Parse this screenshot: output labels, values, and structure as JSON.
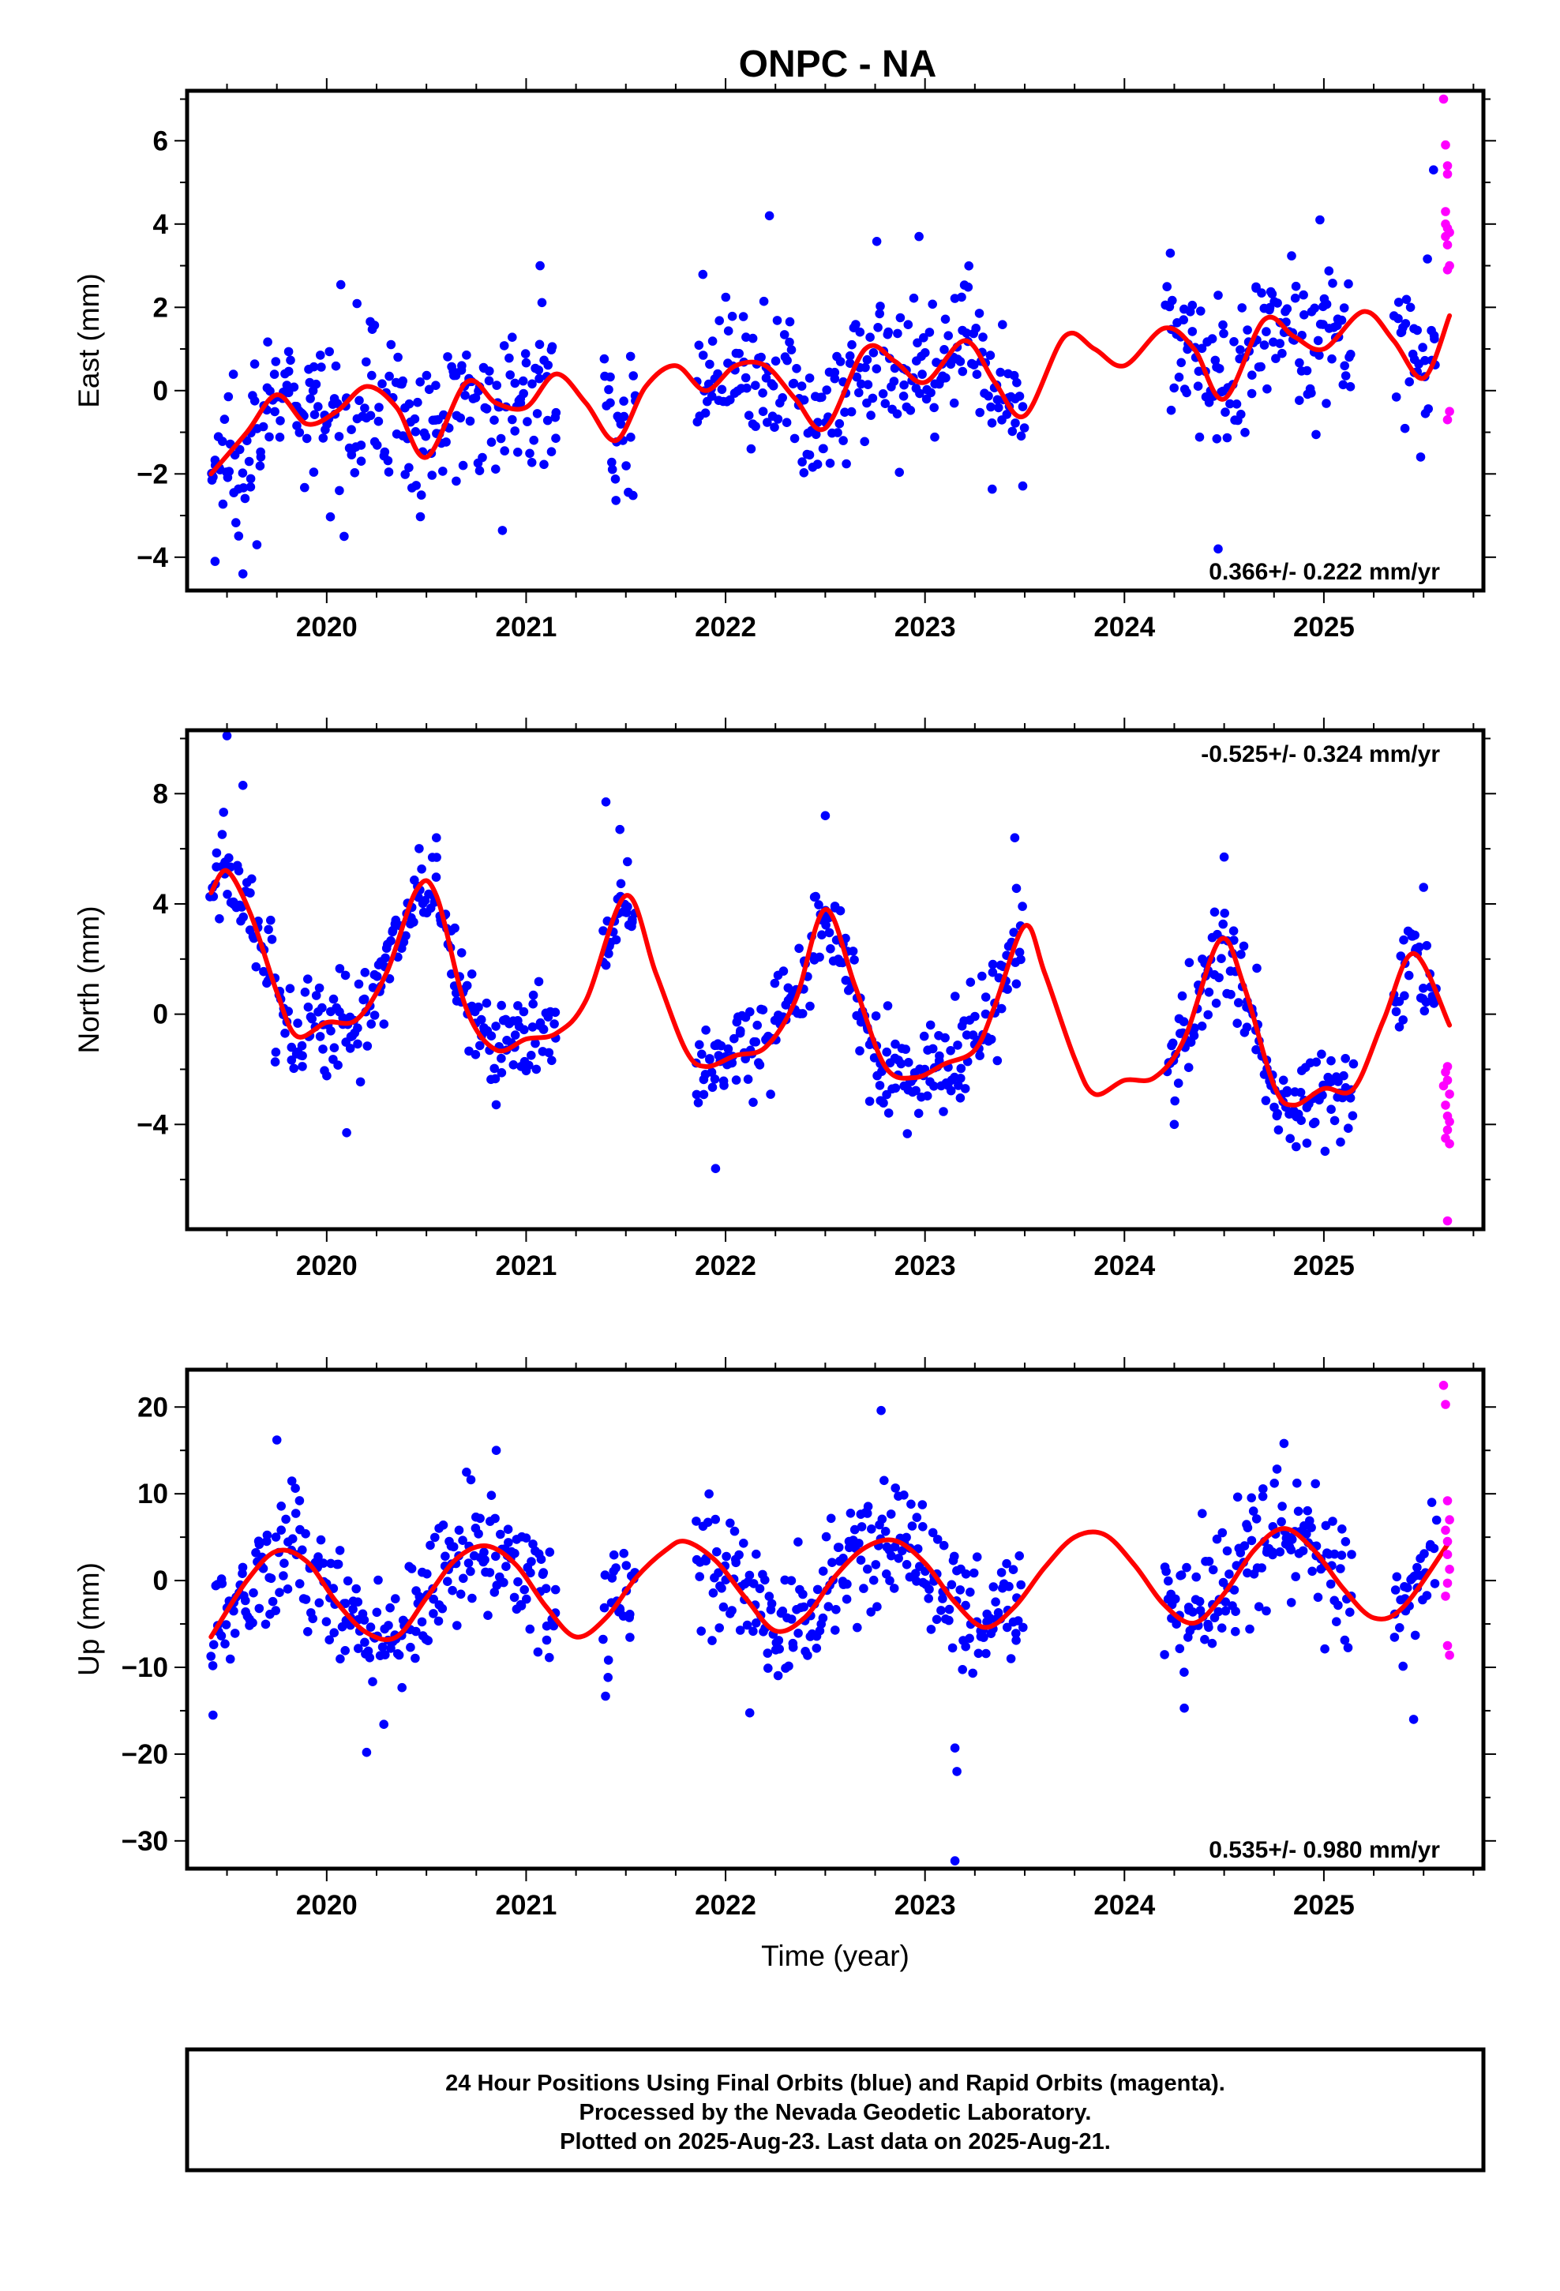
{
  "title": "ONPC - NA",
  "xlabel": "Time (year)",
  "footer": {
    "lines": [
      "24 Hour Positions Using Final Orbits (blue) and Rapid Orbits (magenta).",
      "Processed by the Nevada Geodetic Laboratory.",
      "Plotted on 2025-Aug-23. Last data on 2025-Aug-21."
    ]
  },
  "colors": {
    "final_orbits": "#0000ff",
    "rapid_orbits": "#ff00ff",
    "model_fit": "#ff0000",
    "frame": "#000000"
  },
  "chart_data": [
    {
      "type": "scatter",
      "component": "east",
      "ylabel": "East (mm)",
      "xlim": [
        2019.3,
        2025.8
      ],
      "ylim": [
        -4.8,
        7.2
      ],
      "xticks": [
        2020,
        2021,
        2022,
        2023,
        2024,
        2025
      ],
      "yticks": [
        -4,
        -2,
        0,
        2,
        4,
        6
      ],
      "rate_label": "0.366+/- 0.222 mm/yr",
      "rate_position": "bottom-right",
      "model": {
        "name": "model fit",
        "x": [
          2019.42,
          2019.6,
          2019.75,
          2019.9,
          2020.05,
          2020.2,
          2020.35,
          2020.5,
          2020.7,
          2020.85,
          2021.0,
          2021.15,
          2021.3,
          2021.45,
          2021.6,
          2021.75,
          2021.9,
          2022.05,
          2022.2,
          2022.35,
          2022.5,
          2022.7,
          2022.85,
          2023.0,
          2023.2,
          2023.35,
          2023.5,
          2023.7,
          2023.85,
          2024.0,
          2024.2,
          2024.35,
          2024.5,
          2024.7,
          2024.85,
          2025.0,
          2025.2,
          2025.35,
          2025.5,
          2025.63
        ],
        "y": [
          -2.0,
          -1.0,
          -0.1,
          -0.8,
          -0.5,
          0.1,
          -0.4,
          -1.6,
          0.2,
          -0.3,
          -0.4,
          0.4,
          -0.3,
          -1.2,
          0.1,
          0.6,
          0.0,
          0.6,
          0.6,
          -0.2,
          -0.9,
          1.0,
          0.7,
          0.2,
          1.2,
          0.2,
          -0.6,
          1.3,
          1.0,
          0.6,
          1.5,
          1.0,
          -0.2,
          1.7,
          1.3,
          1.0,
          1.9,
          1.2,
          0.3,
          1.8
        ]
      },
      "gaps": [
        [
          2021.15,
          2021.38
        ],
        [
          2021.55,
          2021.85
        ],
        [
          2023.5,
          2024.2
        ],
        [
          2025.15,
          2025.35
        ]
      ],
      "final_points": {
        "x_start": 2019.42,
        "x_end": 2025.57,
        "count": 900,
        "spread_mm": 0.9,
        "outliers": [
          {
            "x": 2019.44,
            "y": -4.1
          },
          {
            "x": 2019.58,
            "y": -4.4
          },
          {
            "x": 2019.65,
            "y": -3.7
          },
          {
            "x": 2021.07,
            "y": 3.0
          },
          {
            "x": 2022.22,
            "y": 4.2
          },
          {
            "x": 2022.97,
            "y": 3.7
          },
          {
            "x": 2024.23,
            "y": 3.3
          },
          {
            "x": 2024.47,
            "y": -3.8
          },
          {
            "x": 2024.98,
            "y": 4.1
          },
          {
            "x": 2025.55,
            "y": 5.3
          }
        ]
      },
      "rapid_points": {
        "x": [
          2025.6,
          2025.61,
          2025.62,
          2025.62,
          2025.61,
          2025.62,
          2025.61,
          2025.62,
          2025.63,
          2025.62,
          2025.63,
          2025.62,
          2025.61,
          2025.63
        ],
        "y": [
          7.0,
          5.9,
          5.4,
          5.2,
          4.3,
          3.9,
          3.7,
          3.5,
          3.0,
          2.9,
          -0.5,
          -0.7,
          4.0,
          3.8
        ]
      }
    },
    {
      "type": "scatter",
      "component": "north",
      "ylabel": "North (mm)",
      "xlim": [
        2019.3,
        2025.8
      ],
      "ylim": [
        -7.8,
        10.3
      ],
      "xticks": [
        2020,
        2021,
        2022,
        2023,
        2024,
        2025
      ],
      "yticks": [
        -4,
        0,
        4,
        8
      ],
      "rate_label": "-0.525+/- 0.324 mm/yr",
      "rate_position": "top-right",
      "model": {
        "name": "model fit",
        "x": [
          2019.42,
          2019.5,
          2019.62,
          2019.75,
          2019.85,
          2020.0,
          2020.15,
          2020.3,
          2020.45,
          2020.55,
          2020.7,
          2020.85,
          2021.0,
          2021.15,
          2021.3,
          2021.5,
          2021.65,
          2021.8,
          2021.9,
          2022.05,
          2022.2,
          2022.35,
          2022.5,
          2022.65,
          2022.8,
          2022.95,
          2023.1,
          2023.25,
          2023.35,
          2023.5,
          2023.6,
          2023.75,
          2023.85,
          2024.0,
          2024.15,
          2024.3,
          2024.48,
          2024.6,
          2024.75,
          2024.85,
          2025.0,
          2025.15,
          2025.3,
          2025.45,
          2025.63
        ],
        "y": [
          4.4,
          5.2,
          3.6,
          0.8,
          -0.8,
          -0.3,
          -0.2,
          1.5,
          4.5,
          4.3,
          0.2,
          -1.3,
          -0.9,
          -0.7,
          0.5,
          4.3,
          1.5,
          -1.3,
          -1.9,
          -1.5,
          -1.2,
          0.5,
          3.8,
          1.0,
          -1.9,
          -2.3,
          -1.8,
          -1.3,
          0.3,
          3.2,
          1.5,
          -1.6,
          -2.9,
          -2.4,
          -2.3,
          -0.9,
          2.7,
          1.0,
          -2.6,
          -3.3,
          -2.7,
          -2.7,
          -0.2,
          2.2,
          -0.4
        ]
      },
      "gaps": [
        [
          2021.15,
          2021.38
        ],
        [
          2021.55,
          2021.85
        ],
        [
          2023.5,
          2024.2
        ],
        [
          2025.15,
          2025.35
        ]
      ],
      "final_points": {
        "x_start": 2019.42,
        "x_end": 2025.57,
        "count": 900,
        "spread_mm": 0.9,
        "outliers": [
          {
            "x": 2019.5,
            "y": 10.1
          },
          {
            "x": 2019.58,
            "y": 8.3
          },
          {
            "x": 2020.1,
            "y": -4.3
          },
          {
            "x": 2020.55,
            "y": 6.4
          },
          {
            "x": 2021.4,
            "y": 7.7
          },
          {
            "x": 2021.47,
            "y": 6.7
          },
          {
            "x": 2021.95,
            "y": -5.6
          },
          {
            "x": 2022.5,
            "y": 7.2
          },
          {
            "x": 2023.45,
            "y": 6.4
          },
          {
            "x": 2024.25,
            "y": -4.0
          },
          {
            "x": 2024.5,
            "y": 5.7
          },
          {
            "x": 2025.5,
            "y": 4.6
          }
        ]
      },
      "rapid_points": {
        "x": [
          2025.6,
          2025.61,
          2025.62,
          2025.63,
          2025.61,
          2025.62,
          2025.63,
          2025.62,
          2025.61,
          2025.63,
          2025.62,
          2025.62
        ],
        "y": [
          -2.6,
          -2.1,
          -1.9,
          -2.9,
          -3.3,
          -3.7,
          -3.9,
          -4.2,
          -4.5,
          -4.7,
          -7.5,
          -2.4
        ]
      }
    },
    {
      "type": "scatter",
      "component": "up",
      "ylabel": "Up (mm)",
      "xlim": [
        2019.3,
        2025.8
      ],
      "ylim": [
        -33.2,
        24.3
      ],
      "xticks": [
        2020,
        2021,
        2022,
        2023,
        2024,
        2025
      ],
      "yticks": [
        -30,
        -20,
        -10,
        0,
        10,
        20
      ],
      "rate_label": "0.535+/- 0.980 mm/yr",
      "rate_position": "bottom-right",
      "model": {
        "name": "model fit",
        "x": [
          2019.42,
          2019.6,
          2019.75,
          2019.9,
          2020.05,
          2020.2,
          2020.35,
          2020.5,
          2020.65,
          2020.8,
          2020.95,
          2021.1,
          2021.25,
          2021.4,
          2021.55,
          2021.7,
          2021.8,
          2021.95,
          2022.1,
          2022.25,
          2022.4,
          2022.55,
          2022.7,
          2022.85,
          2023.0,
          2023.15,
          2023.3,
          2023.45,
          2023.6,
          2023.75,
          2023.9,
          2024.05,
          2024.2,
          2024.35,
          2024.5,
          2024.65,
          2024.8,
          2024.95,
          2025.1,
          2025.25,
          2025.4,
          2025.63
        ],
        "y": [
          -6.5,
          0.0,
          3.4,
          2.2,
          -2.5,
          -6.0,
          -6.5,
          -2.0,
          2.5,
          4.0,
          1.8,
          -3.0,
          -6.5,
          -4.3,
          0.3,
          3.5,
          4.5,
          2.3,
          -2.0,
          -5.8,
          -4.2,
          0.5,
          3.8,
          4.6,
          2.0,
          -2.5,
          -5.4,
          -3.0,
          1.5,
          5.0,
          5.3,
          1.8,
          -2.8,
          -4.9,
          -1.5,
          3.5,
          6.0,
          3.5,
          -1.0,
          -4.3,
          -3.0,
          4.5
        ]
      },
      "gaps": [
        [
          2021.15,
          2021.38
        ],
        [
          2021.55,
          2021.85
        ],
        [
          2023.5,
          2024.2
        ],
        [
          2025.15,
          2025.35
        ]
      ],
      "final_points": {
        "x_start": 2019.42,
        "x_end": 2025.57,
        "count": 900,
        "spread_mm": 3.6,
        "outliers": [
          {
            "x": 2019.43,
            "y": -15.5
          },
          {
            "x": 2019.75,
            "y": 16.2
          },
          {
            "x": 2020.2,
            "y": -19.8
          },
          {
            "x": 2020.85,
            "y": 15.0
          },
          {
            "x": 2022.78,
            "y": 19.6
          },
          {
            "x": 2023.15,
            "y": -19.3
          },
          {
            "x": 2023.16,
            "y": -22.0
          },
          {
            "x": 2023.15,
            "y": -32.3
          },
          {
            "x": 2024.3,
            "y": -14.7
          },
          {
            "x": 2024.8,
            "y": 15.8
          },
          {
            "x": 2025.45,
            "y": -16.0
          }
        ]
      },
      "rapid_points": {
        "x": [
          2025.6,
          2025.61,
          2025.62,
          2025.63,
          2025.61,
          2025.62,
          2025.63,
          2025.62,
          2025.61,
          2025.62,
          2025.63,
          2025.62
        ],
        "y": [
          22.5,
          20.3,
          9.2,
          7.0,
          5.8,
          3.0,
          1.3,
          -0.3,
          -1.8,
          -7.5,
          -8.6,
          4.5
        ]
      }
    }
  ]
}
